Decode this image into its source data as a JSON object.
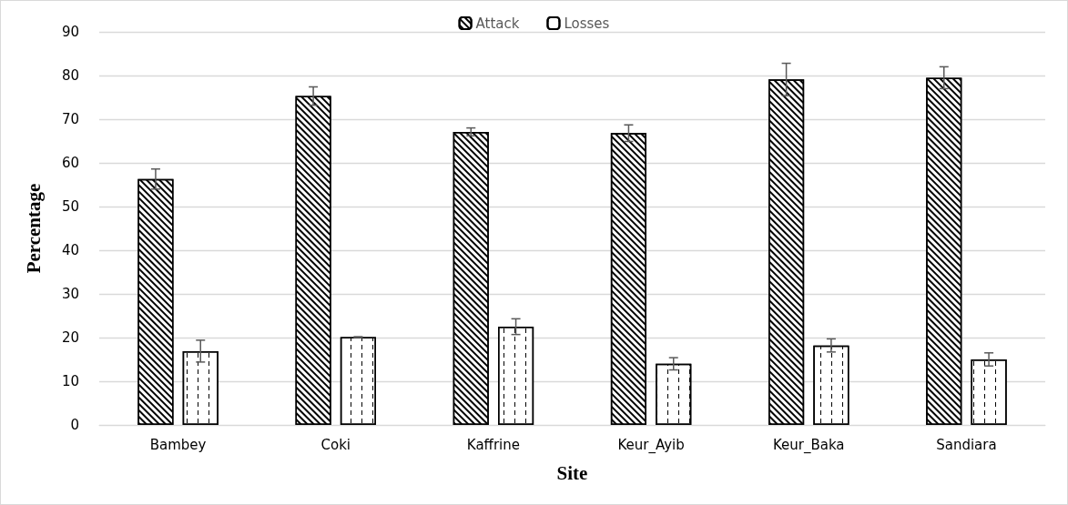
{
  "chart_data": {
    "type": "bar",
    "xlabel": "Site",
    "ylabel": "Percentage",
    "categories": [
      "Bambey",
      "Coki",
      "Kaffrine",
      "Keur_Ayib",
      "Keur_Baka",
      "Sandiara"
    ],
    "series": [
      {
        "name": "Attack",
        "values": [
          56.3,
          75.3,
          67.1,
          66.8,
          79.1,
          79.5
        ],
        "errors": [
          2.3,
          2.1,
          0.9,
          1.9,
          3.7,
          2.5
        ]
      },
      {
        "name": "Losses",
        "values": [
          16.9,
          20.1,
          22.5,
          14.0,
          18.2,
          15.0
        ],
        "errors": [
          2.5,
          0.1,
          1.8,
          1.4,
          1.5,
          1.5
        ]
      }
    ],
    "ylim": [
      0,
      90
    ],
    "yticks": [
      0,
      10,
      20,
      30,
      40,
      50,
      60,
      70,
      80,
      90
    ],
    "grid": "y",
    "legend": "top"
  }
}
